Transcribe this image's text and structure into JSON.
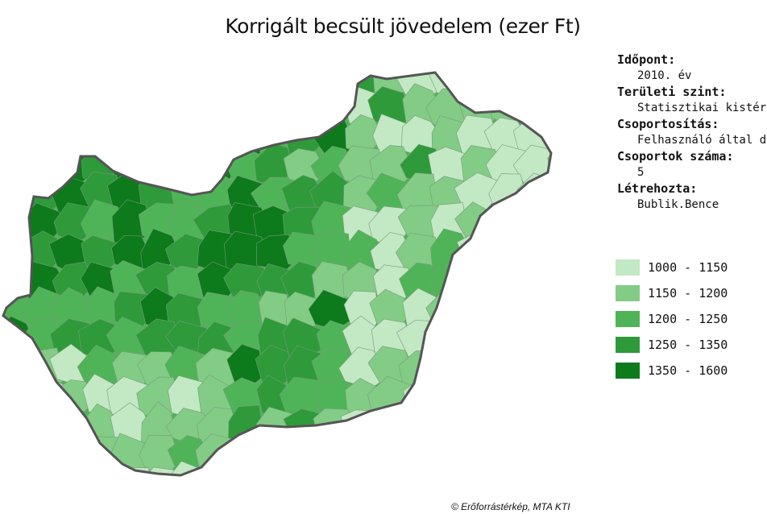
{
  "title": "Korrigált becsült jövedelem (ezer Ft)",
  "info": [
    {
      "label": "Időpont:",
      "value": "2010. év"
    },
    {
      "label": "Területi szint:",
      "value": "Statisztikai kistérség"
    },
    {
      "label": "Csoportosítás:",
      "value": "Felhasználó által definiált"
    },
    {
      "label": "Csoportok száma:",
      "value": "5"
    },
    {
      "label": "Létrehozta:",
      "value": "Bublik.Bence"
    }
  ],
  "legend": [
    {
      "label": "1000 - 1150",
      "color": "#c2e8c4"
    },
    {
      "label": "1150 - 1200",
      "color": "#82cc86"
    },
    {
      "label": "1200 - 1250",
      "color": "#4fb458"
    },
    {
      "label": "1250 - 1350",
      "color": "#2e9a3a"
    },
    {
      "label": "1350 - 1600",
      "color": "#0d7a1c"
    }
  ],
  "outline_color": "#555555",
  "credit": "© Erőforrástérkép, MTA KTI"
}
